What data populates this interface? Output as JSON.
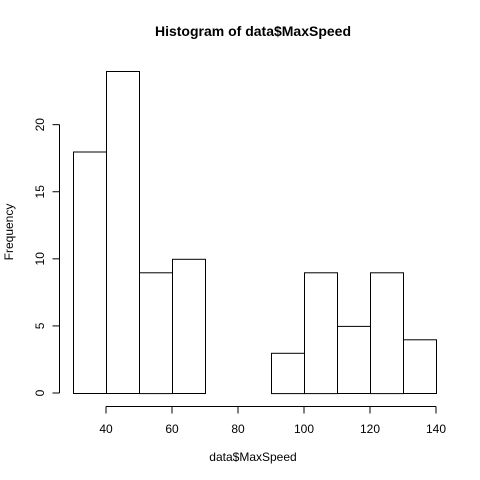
{
  "chart_data": {
    "type": "bar",
    "subtype": "histogram",
    "title": "Histogram of data$MaxSpeed",
    "xlabel": "data$MaxSpeed",
    "ylabel": "Frequency",
    "bins": [
      {
        "from": 30,
        "to": 40,
        "count": 18
      },
      {
        "from": 40,
        "to": 50,
        "count": 24
      },
      {
        "from": 50,
        "to": 60,
        "count": 9
      },
      {
        "from": 60,
        "to": 70,
        "count": 10
      },
      {
        "from": 70,
        "to": 80,
        "count": 0
      },
      {
        "from": 80,
        "to": 90,
        "count": 0
      },
      {
        "from": 90,
        "to": 100,
        "count": 3
      },
      {
        "from": 100,
        "to": 110,
        "count": 9
      },
      {
        "from": 110,
        "to": 120,
        "count": 5
      },
      {
        "from": 120,
        "to": 130,
        "count": 9
      },
      {
        "from": 130,
        "to": 140,
        "count": 4
      }
    ],
    "xlim": [
      30,
      140
    ],
    "ylim": [
      0,
      24
    ],
    "x_ticks": [
      40,
      60,
      80,
      100,
      120,
      140
    ],
    "y_ticks": [
      0,
      5,
      10,
      15,
      20
    ],
    "grid": false,
    "legend": "none"
  }
}
